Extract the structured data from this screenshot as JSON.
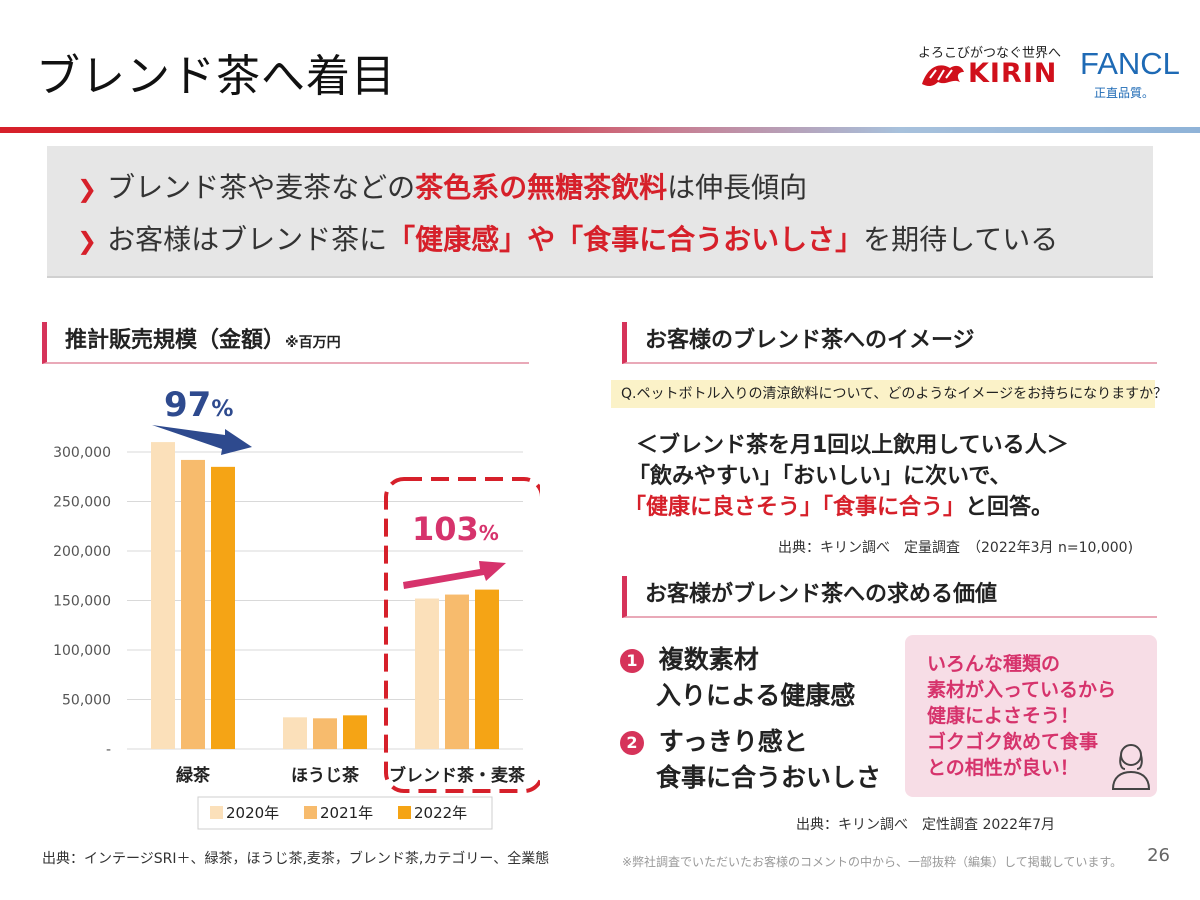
{
  "header": {
    "title": "ブレンド茶へ着目",
    "tagline": "よろこびがつなぐ世界へ",
    "kirin_logo": "KIRIN",
    "fancl_logo": "FANCL",
    "fancl_sub": "正直品質。"
  },
  "summary": {
    "b1_pre": "ブレンド茶や麦茶などの",
    "b1_hl": "茶色系の無糖茶飲料",
    "b1_post": "は伸長傾向",
    "b2_pre": "お客様はブレンド茶に",
    "b2_hl": "「健康感」や「食事に合うおいしさ」",
    "b2_post": "を期待している"
  },
  "chart_section": {
    "title": "推計販売規模（金額）",
    "unit": "※百万円",
    "source": "出典：インテージSRI＋、緑茶，ほうじ茶,麦茶，ブレンド茶,カテゴリー、全業態"
  },
  "chart_data": {
    "type": "bar",
    "categories": [
      "緑茶",
      "ほうじ茶",
      "ブレンド茶・麦茶"
    ],
    "series": [
      {
        "name": "2020年",
        "values": [
          310000,
          32000,
          152000
        ]
      },
      {
        "name": "2021年",
        "values": [
          292000,
          31000,
          156000
        ]
      },
      {
        "name": "2022年",
        "values": [
          285000,
          34000,
          161000
        ]
      }
    ],
    "ylim": [
      0,
      300000
    ],
    "yticks": [
      "-",
      "50,000",
      "100,000",
      "150,000",
      "200,000",
      "250,000",
      "300,000"
    ],
    "grid": true,
    "legend": "bottom",
    "colors": [
      "#fbe0ba",
      "#f7bb6d",
      "#f5a415"
    ],
    "annotations": [
      {
        "pct_num": "97",
        "pct_sym": "%",
        "color": "#2e4a8e"
      },
      {
        "pct_num": "103",
        "pct_sym": "%",
        "color": "#d6336c"
      }
    ]
  },
  "image_section": {
    "title": "お客様のブレンド茶へのイメージ",
    "question": "Q.ペットボトル入りの清涼飲料について、どのようなイメージをお持ちになりますか？",
    "answer_line1": "＜ブレンド茶を月1回以上飲用している人＞",
    "answer_line2": "「飲みやすい」「おいしい」に次いで、",
    "answer_line3_hl": "「健康に良さそう」「食事に合う」",
    "answer_line3_post": "と回答。",
    "source": "出典：キリン調べ　定量調査　（2022年3月 n=10,000)"
  },
  "value_section": {
    "title": "お客様がブレンド茶への求める価値",
    "item1_num": "1",
    "item1_line1": "複数素材",
    "item1_line2": "入りによる健康感",
    "item2_num": "2",
    "item2_line1": "すっきり感と",
    "item2_line2": "食事に合うおいしさ",
    "comment_lines": [
      "いろんな種類の",
      "素材が入っているから",
      "健康によさそう！",
      "ゴクゴク飲めて食事",
      "との相性が良い！"
    ],
    "source": "出典：キリン調べ　定性調査 2022年7月"
  },
  "footer": {
    "note": "※弊社調査でいただいたお客様のコメントの中から、一部抜粋（編集）して掲載しています。",
    "page_number": "26"
  }
}
